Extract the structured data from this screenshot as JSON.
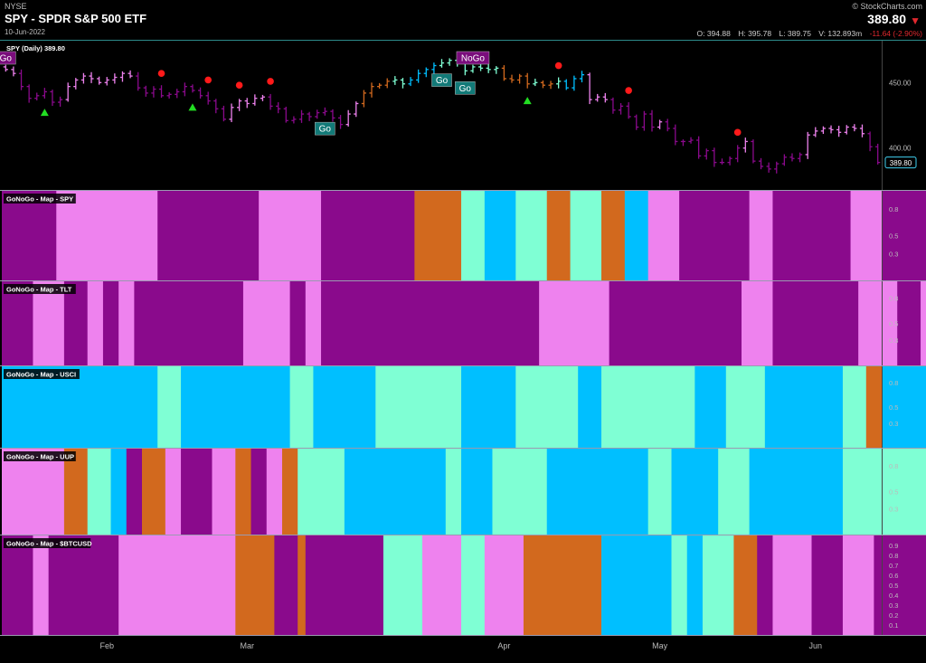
{
  "header": {
    "exchange": "NYSE",
    "title": "SPY - SPDR S&P 500 ETF",
    "date": "10-Jun-2022",
    "copyright": "© StockCharts.com",
    "last": "389.80",
    "open": "O: 394.88",
    "high": "H: 395.78",
    "low": "L: 389.75",
    "volume": "V: 132.893m",
    "change": "-11.64 (-2.90%)"
  },
  "chart_data": {
    "type": "bar",
    "price_panel": {
      "legend": "SPY (Daily) 389.80",
      "last_label": "389.80",
      "y_ticks": [
        "450.00",
        "400.00"
      ],
      "ylim": [
        368,
        482
      ],
      "closes": [
        460,
        457,
        447,
        438,
        440,
        443,
        435,
        437,
        447,
        452,
        455,
        453,
        450,
        452,
        454,
        457,
        455,
        446,
        442,
        445,
        440,
        441,
        443,
        447,
        444,
        440,
        436,
        430,
        422,
        431,
        436,
        434,
        438,
        439,
        432,
        430,
        421,
        422,
        426,
        424,
        427,
        428,
        423,
        418,
        426,
        434,
        442,
        447,
        448,
        451,
        452,
        449,
        452,
        457,
        460,
        463,
        465,
        467,
        465,
        459,
        462,
        461,
        460,
        461,
        453,
        452,
        455,
        449,
        450,
        448,
        449,
        451,
        446,
        453,
        456,
        437,
        439,
        437,
        429,
        432,
        424,
        416,
        426,
        416,
        420,
        415,
        405,
        405,
        406,
        394,
        398,
        389,
        389,
        392,
        400,
        405,
        390,
        386,
        384,
        388,
        393,
        392,
        395,
        410,
        413,
        415,
        414,
        412,
        416,
        415,
        411,
        401,
        389
      ],
      "colors": [
        "pink",
        "pink",
        "purple",
        "purple",
        "purple",
        "purple",
        "purple",
        "purple",
        "pink",
        "pink",
        "pink",
        "pink",
        "pink",
        "pink",
        "pink",
        "pink",
        "pink",
        "purple",
        "purple",
        "purple",
        "purple",
        "purple",
        "purple",
        "purple",
        "purple",
        "purple",
        "purple",
        "purple",
        "purple",
        "pink",
        "pink",
        "pink",
        "pink",
        "pink",
        "purple",
        "purple",
        "purple",
        "purple",
        "purple",
        "purple",
        "purple",
        "purple",
        "purple",
        "purple",
        "pink",
        "pink",
        "orange",
        "orange",
        "orange",
        "orange",
        "aqua",
        "aqua",
        "blue",
        "blue",
        "blue",
        "blue",
        "aqua",
        "aqua",
        "aqua",
        "aqua",
        "aqua",
        "aqua",
        "aqua",
        "aqua",
        "orange",
        "orange",
        "orange",
        "orange",
        "aqua",
        "orange",
        "orange",
        "aqua",
        "blue",
        "blue",
        "blue",
        "pink",
        "pink",
        "pink",
        "purple",
        "purple",
        "purple",
        "purple",
        "purple",
        "purple",
        "pink",
        "purple",
        "purple",
        "purple",
        "purple",
        "purple",
        "purple",
        "purple",
        "purple",
        "purple",
        "purple",
        "pink",
        "purple",
        "purple",
        "purple",
        "purple",
        "purple",
        "purple",
        "purple",
        "pink",
        "pink",
        "pink",
        "pink",
        "pink",
        "pink",
        "pink",
        "pink",
        "purple",
        "purple"
      ],
      "labels": [
        {
          "text": "Go",
          "index": 0,
          "style": "purple"
        },
        {
          "text": "Go",
          "index": 41,
          "style": "teal"
        },
        {
          "text": "Go",
          "index": 56,
          "style": "teal"
        },
        {
          "text": "Go",
          "index": 59,
          "style": "teal"
        },
        {
          "text": "NoGo",
          "index": 60,
          "style": "purple"
        }
      ],
      "green_triangles": [
        5,
        24,
        67
      ],
      "red_dots": [
        20,
        26,
        30,
        34,
        71,
        80,
        94
      ]
    },
    "color_key": {
      "purple": "#8a0a8c",
      "pink": "#ee82ee",
      "orange": "#d2691e",
      "aqua": "#7fffd4",
      "blue": "#00bfff"
    },
    "map_panels": [
      {
        "title": "GoNoGo - Map - SPY",
        "y_ticks": [
          "0.8",
          "0.5",
          "0.3"
        ],
        "segments": [
          [
            "purple",
            7
          ],
          [
            "pink",
            13
          ],
          [
            "purple",
            13
          ],
          [
            "pink",
            8
          ],
          [
            "purple",
            12
          ],
          [
            "orange",
            6
          ],
          [
            "aqua",
            3
          ],
          [
            "blue",
            4
          ],
          [
            "aqua",
            4
          ],
          [
            "orange",
            3
          ],
          [
            "aqua",
            4
          ],
          [
            "orange",
            3
          ],
          [
            "blue",
            3
          ],
          [
            "pink",
            4
          ],
          [
            "purple",
            9
          ],
          [
            "pink",
            3
          ],
          [
            "purple",
            10
          ],
          [
            "pink",
            4
          ],
          [
            "purple",
            7
          ],
          [
            "pink",
            10
          ],
          [
            "purple",
            6
          ]
        ]
      },
      {
        "title": "GoNoGo - Map - TLT",
        "y_ticks": [
          "0.8",
          "0.5",
          "0.3"
        ],
        "segments": [
          [
            "purple",
            4
          ],
          [
            "pink",
            4
          ],
          [
            "purple",
            3
          ],
          [
            "pink",
            2
          ],
          [
            "purple",
            2
          ],
          [
            "pink",
            2
          ],
          [
            "purple",
            14
          ],
          [
            "pink",
            6
          ],
          [
            "purple",
            2
          ],
          [
            "pink",
            2
          ],
          [
            "purple",
            28
          ],
          [
            "pink",
            9
          ],
          [
            "purple",
            17
          ],
          [
            "pink",
            4
          ],
          [
            "purple",
            11
          ],
          [
            "pink",
            5
          ],
          [
            "purple",
            3
          ],
          [
            "pink",
            10
          ],
          [
            "purple",
            13
          ]
        ]
      },
      {
        "title": "GoNoGo - Map - USCI",
        "y_ticks": [
          "0.8",
          "0.5",
          "0.3"
        ],
        "segments": [
          [
            "blue",
            20
          ],
          [
            "aqua",
            3
          ],
          [
            "blue",
            14
          ],
          [
            "aqua",
            3
          ],
          [
            "blue",
            8
          ],
          [
            "aqua",
            11
          ],
          [
            "blue",
            7
          ],
          [
            "aqua",
            8
          ],
          [
            "blue",
            3
          ],
          [
            "aqua",
            12
          ],
          [
            "blue",
            4
          ],
          [
            "aqua",
            5
          ],
          [
            "blue",
            10
          ],
          [
            "aqua",
            3
          ],
          [
            "orange",
            2
          ],
          [
            "blue",
            7
          ],
          [
            "aqua",
            6
          ],
          [
            "orange",
            2
          ],
          [
            "aqua",
            3
          ],
          [
            "blue",
            15
          ]
        ]
      },
      {
        "title": "GoNoGo - Map - UUP",
        "y_ticks": [
          "0.8",
          "0.5",
          "0.3"
        ],
        "segments": [
          [
            "pink",
            8
          ],
          [
            "orange",
            3
          ],
          [
            "aqua",
            3
          ],
          [
            "blue",
            2
          ],
          [
            "purple",
            2
          ],
          [
            "orange",
            3
          ],
          [
            "pink",
            2
          ],
          [
            "purple",
            4
          ],
          [
            "pink",
            3
          ],
          [
            "orange",
            2
          ],
          [
            "purple",
            2
          ],
          [
            "pink",
            2
          ],
          [
            "orange",
            2
          ],
          [
            "aqua",
            6
          ],
          [
            "blue",
            13
          ],
          [
            "aqua",
            2
          ],
          [
            "blue",
            4
          ],
          [
            "aqua",
            7
          ],
          [
            "blue",
            13
          ],
          [
            "aqua",
            3
          ],
          [
            "blue",
            6
          ],
          [
            "aqua",
            4
          ],
          [
            "blue",
            12
          ],
          [
            "aqua",
            15
          ],
          [
            "blue",
            2
          ],
          [
            "aqua",
            1
          ],
          [
            "orange",
            6
          ],
          [
            "aqua",
            3
          ]
        ]
      },
      {
        "title": "GoNoGo - Map - $BTCUSD",
        "y_ticks": [
          "0.9",
          "0.8",
          "0.7",
          "0.6",
          "0.5",
          "0.4",
          "0.3",
          "0.2",
          "0.1"
        ],
        "segments": [
          [
            "purple",
            4
          ],
          [
            "pink",
            2
          ],
          [
            "purple",
            9
          ],
          [
            "pink",
            15
          ],
          [
            "orange",
            5
          ],
          [
            "purple",
            3
          ],
          [
            "orange",
            1
          ],
          [
            "purple",
            10
          ],
          [
            "aqua",
            5
          ],
          [
            "pink",
            5
          ],
          [
            "aqua",
            3
          ],
          [
            "pink",
            5
          ],
          [
            "orange",
            10
          ],
          [
            "blue",
            9
          ],
          [
            "aqua",
            2
          ],
          [
            "blue",
            2
          ],
          [
            "aqua",
            4
          ],
          [
            "orange",
            3
          ],
          [
            "purple",
            2
          ],
          [
            "pink",
            5
          ],
          [
            "purple",
            4
          ],
          [
            "pink",
            4
          ],
          [
            "purple",
            17
          ],
          [
            "pink",
            6
          ],
          [
            "purple",
            3
          ],
          [
            "pink",
            4
          ],
          [
            "purple",
            8
          ]
        ]
      }
    ],
    "x_ticks": [
      {
        "label": "Feb",
        "index": 13
      },
      {
        "label": "Mar",
        "index": 31
      },
      {
        "label": "Apr",
        "index": 64
      },
      {
        "label": "May",
        "index": 84
      },
      {
        "label": "Jun",
        "index": 104
      }
    ]
  }
}
